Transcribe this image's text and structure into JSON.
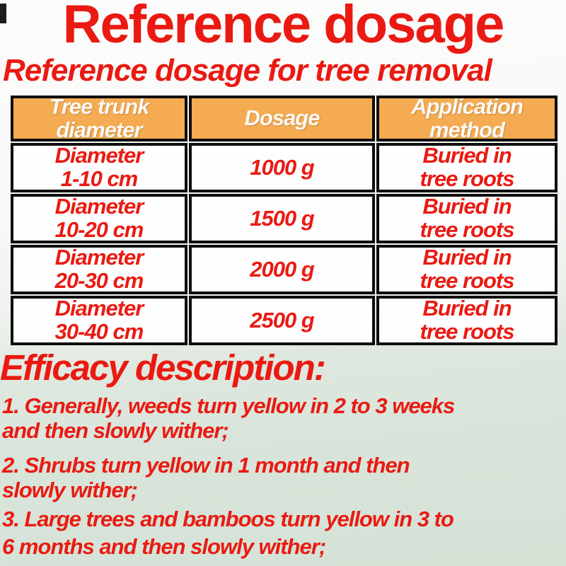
{
  "page": {
    "title": "Reference dosage",
    "subtitle": "Reference dosage for tree removal",
    "efficacy_heading": "Efficacy description:",
    "efficacy_points": [
      "1. Generally, weeds turn yellow in 2 to 3 weeks\nand then slowly wither;",
      "2. Shrubs turn yellow in 1 month and then\nslowly wither;",
      "3. Large trees and bamboos turn yellow in 3 to\n6 months and then slowly wither;"
    ]
  },
  "dosage_table": {
    "headers": [
      "Tree trunk\ndiameter",
      "Dosage",
      "Application\nmethod"
    ],
    "rows": [
      [
        "Diameter\n1-10 cm",
        "1000 g",
        "Buried in\ntree roots"
      ],
      [
        "Diameter\n10-20 cm",
        "1500 g",
        "Buried in\ntree roots"
      ],
      [
        "Diameter\n20-30 cm",
        "2000 g",
        "Buried in\ntree roots"
      ],
      [
        "Diameter\n30-40 cm",
        "2500 g",
        "Buried in\ntree roots"
      ]
    ]
  },
  "colors": {
    "text_red": "#ea1a12",
    "header_orange": "#f5ab51",
    "header_text_white": "#faf8f3",
    "table_border_black": "#0e0e0e",
    "cell_bg_white": "#fefefe",
    "bg_top_white": "#fcfcfc",
    "bg_bottom_green": "#d5e2d6"
  }
}
